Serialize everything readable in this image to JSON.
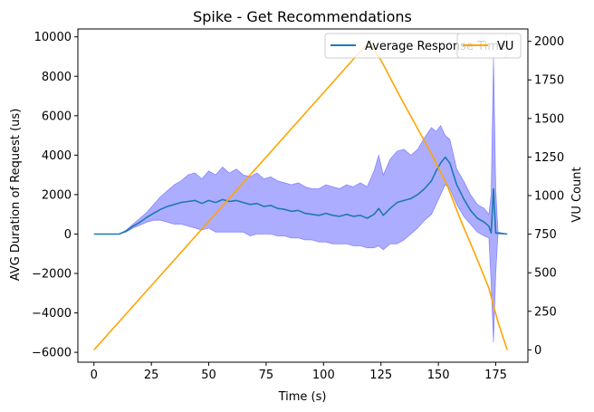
{
  "chart_data": {
    "type": "line",
    "title": "Spike - Get Recommendations",
    "xlabel": "Time (s)",
    "ylabel": "AVG Duration of Request (us)",
    "y2label": "VU Count",
    "xlim": [
      -7,
      189
    ],
    "ylim": [
      -6500,
      10400
    ],
    "y2lim": [
      -80,
      2080
    ],
    "x_ticks": [
      0,
      25,
      50,
      75,
      100,
      125,
      150,
      175
    ],
    "y_ticks": [
      -6000,
      -4000,
      -2000,
      0,
      2000,
      4000,
      6000,
      8000,
      10000
    ],
    "y2_ticks": [
      0,
      250,
      500,
      750,
      1000,
      1250,
      1500,
      1750,
      2000
    ],
    "grid": false,
    "legend_position": "top-right",
    "legend_entries": [
      "Average Response Time",
      "VU"
    ],
    "colors": {
      "avg": "#1f77b4",
      "band": "#0000ff",
      "band_opacity": 0.32,
      "vu": "#ffa500"
    },
    "series": [
      {
        "name": "Average Response Time",
        "axis": "left",
        "x": [
          0,
          11,
          14,
          17,
          20,
          23,
          26,
          29,
          32,
          35,
          38,
          41,
          44,
          47,
          50,
          53,
          56,
          59,
          62,
          65,
          68,
          71,
          74,
          77,
          80,
          83,
          86,
          89,
          92,
          95,
          98,
          101,
          104,
          107,
          110,
          113,
          116,
          119,
          122,
          124,
          126,
          129,
          132,
          135,
          138,
          141,
          144,
          147,
          149,
          151,
          153,
          155,
          158,
          161,
          164,
          167,
          170,
          172,
          173,
          174,
          175,
          176,
          180
        ],
        "values": [
          0,
          0,
          150,
          400,
          600,
          850,
          1050,
          1250,
          1400,
          1500,
          1600,
          1650,
          1700,
          1550,
          1700,
          1600,
          1750,
          1650,
          1700,
          1600,
          1500,
          1550,
          1400,
          1450,
          1300,
          1250,
          1150,
          1200,
          1050,
          1000,
          950,
          1050,
          950,
          900,
          1000,
          900,
          950,
          800,
          1000,
          1300,
          950,
          1300,
          1600,
          1700,
          1800,
          2000,
          2300,
          2700,
          3200,
          3600,
          3900,
          3600,
          2500,
          1800,
          1200,
          800,
          600,
          400,
          50,
          2300,
          50,
          50,
          0
        ]
      },
      {
        "name": "VU",
        "axis": "right",
        "x": [
          0,
          120,
          126,
          133,
          140,
          147,
          154,
          160,
          166,
          172,
          176,
          180
        ],
        "values": [
          0,
          2000,
          1850,
          1650,
          1460,
          1270,
          1060,
          830,
          620,
          400,
          180,
          0
        ]
      }
    ],
    "band": {
      "x": [
        0,
        11,
        14,
        17,
        20,
        23,
        26,
        29,
        32,
        35,
        38,
        41,
        44,
        47,
        50,
        53,
        56,
        59,
        62,
        65,
        68,
        71,
        74,
        77,
        80,
        83,
        86,
        89,
        92,
        95,
        98,
        101,
        104,
        107,
        110,
        113,
        116,
        119,
        122,
        124,
        126,
        129,
        132,
        135,
        138,
        141,
        144,
        147,
        149,
        151,
        153,
        155,
        158,
        161,
        164,
        167,
        170,
        172,
        173,
        174,
        175,
        176,
        180
      ],
      "upper": [
        0,
        0,
        200,
        500,
        800,
        1100,
        1500,
        1900,
        2200,
        2500,
        2700,
        3000,
        3100,
        2800,
        3200,
        3000,
        3400,
        3100,
        3300,
        3000,
        2900,
        3100,
        2800,
        2900,
        2700,
        2600,
        2500,
        2600,
        2400,
        2300,
        2300,
        2500,
        2400,
        2300,
        2500,
        2400,
        2600,
        2400,
        3200,
        4000,
        3000,
        3800,
        4200,
        4300,
        4000,
        4300,
        4900,
        5400,
        5200,
        5500,
        5000,
        4800,
        3300,
        2700,
        2000,
        1500,
        1300,
        1000,
        2000,
        9000,
        2300,
        100,
        0
      ],
      "lower": [
        0,
        0,
        100,
        300,
        450,
        600,
        700,
        700,
        600,
        500,
        500,
        400,
        300,
        200,
        300,
        100,
        100,
        100,
        100,
        100,
        -100,
        0,
        0,
        0,
        -100,
        -100,
        -200,
        -200,
        -300,
        -300,
        -400,
        -400,
        -500,
        -500,
        -500,
        -600,
        -600,
        -700,
        -700,
        -600,
        -800,
        -500,
        -500,
        -300,
        0,
        300,
        700,
        1000,
        1500,
        2000,
        2500,
        2300,
        1500,
        900,
        500,
        100,
        -100,
        -200,
        -2500,
        -5500,
        -2000,
        0,
        0
      ]
    }
  }
}
